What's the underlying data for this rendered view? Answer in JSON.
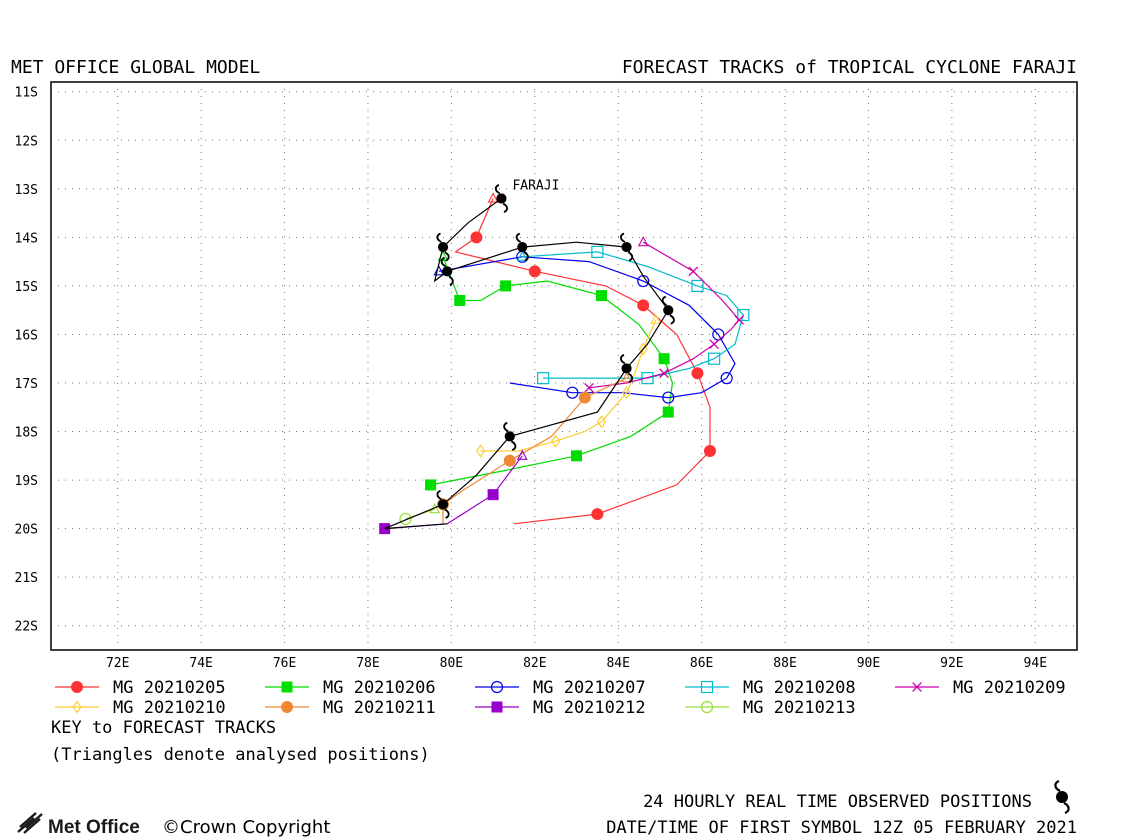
{
  "header": {
    "left_title": "MET OFFICE GLOBAL MODEL",
    "right_title": "FORECAST TRACKS of TROPICAL CYCLONE FARAJI"
  },
  "chart_data": {
    "type": "map-track",
    "lon_range": [
      70.4,
      95.0
    ],
    "lat_range": [
      -22.5,
      -10.8
    ],
    "x_ticks": [
      72,
      74,
      76,
      78,
      80,
      82,
      84,
      86,
      88,
      90,
      92,
      94
    ],
    "x_tick_labels": [
      "72E",
      "74E",
      "76E",
      "78E",
      "80E",
      "82E",
      "84E",
      "86E",
      "88E",
      "90E",
      "92E",
      "94E"
    ],
    "y_ticks": [
      -11,
      -12,
      -13,
      -14,
      -15,
      -16,
      -17,
      -18,
      -19,
      -20,
      -21,
      -22
    ],
    "y_tick_labels": [
      "11S",
      "12S",
      "13S",
      "14S",
      "15S",
      "16S",
      "17S",
      "18S",
      "19S",
      "20S",
      "21S",
      "22S"
    ],
    "grid": true,
    "storm_label": "FARAJI",
    "observed_positions": [
      [
        81.2,
        -13.2
      ],
      [
        79.8,
        -14.2
      ],
      [
        81.7,
        -14.2
      ],
      [
        84.2,
        -14.2
      ],
      [
        79.9,
        -14.7
      ],
      [
        85.2,
        -15.5
      ],
      [
        84.2,
        -16.7
      ],
      [
        81.4,
        -18.1
      ],
      [
        79.8,
        -19.5
      ]
    ],
    "observed_track": [
      [
        81.2,
        -13.2
      ],
      [
        80.4,
        -13.7
      ],
      [
        79.8,
        -14.2
      ],
      [
        79.6,
        -14.9
      ],
      [
        79.9,
        -14.7
      ],
      [
        81.7,
        -14.2
      ],
      [
        83.0,
        -14.1
      ],
      [
        84.2,
        -14.2
      ],
      [
        84.6,
        -14.8
      ],
      [
        85.2,
        -15.5
      ],
      [
        84.7,
        -16.2
      ],
      [
        84.2,
        -16.7
      ],
      [
        83.5,
        -17.6
      ],
      [
        81.4,
        -18.1
      ],
      [
        80.6,
        -18.9
      ],
      [
        79.8,
        -19.5
      ],
      [
        78.4,
        -20.0
      ],
      [
        79.9,
        -19.9
      ]
    ],
    "series": [
      {
        "name": "MG 20210205",
        "color": "#ff3333",
        "marker": "filled-circle",
        "points": [
          [
            81.0,
            -13.2
          ],
          [
            80.6,
            -14.0
          ],
          [
            80.1,
            -14.3
          ],
          [
            82.0,
            -14.7
          ],
          [
            83.7,
            -15.0
          ],
          [
            84.6,
            -15.4
          ],
          [
            85.4,
            -16.0
          ],
          [
            85.9,
            -16.8
          ],
          [
            86.2,
            -17.5
          ],
          [
            86.2,
            -18.4
          ],
          [
            85.4,
            -19.1
          ],
          [
            83.5,
            -19.7
          ],
          [
            81.5,
            -19.9
          ]
        ]
      },
      {
        "name": "MG 20210206",
        "color": "#00dd00",
        "marker": "filled-square",
        "points": [
          [
            79.8,
            -14.4
          ],
          [
            80.2,
            -15.3
          ],
          [
            80.7,
            -15.3
          ],
          [
            81.3,
            -15.0
          ],
          [
            82.3,
            -14.9
          ],
          [
            83.6,
            -15.2
          ],
          [
            84.5,
            -15.8
          ],
          [
            85.1,
            -16.5
          ],
          [
            85.3,
            -17.0
          ],
          [
            85.2,
            -17.6
          ],
          [
            84.3,
            -18.1
          ],
          [
            83.0,
            -18.5
          ],
          [
            81.3,
            -18.8
          ],
          [
            79.5,
            -19.1
          ]
        ]
      },
      {
        "name": "MG 20210207",
        "color": "#0000ee",
        "marker": "open-circle",
        "points": [
          [
            79.7,
            -14.7
          ],
          [
            81.7,
            -14.4
          ],
          [
            83.3,
            -14.5
          ],
          [
            84.6,
            -14.9
          ],
          [
            85.7,
            -15.4
          ],
          [
            86.4,
            -16.0
          ],
          [
            86.8,
            -16.6
          ],
          [
            86.6,
            -16.9
          ],
          [
            86.0,
            -17.2
          ],
          [
            85.2,
            -17.3
          ],
          [
            84.1,
            -17.2
          ],
          [
            82.9,
            -17.2
          ],
          [
            81.4,
            -17.0
          ]
        ]
      },
      {
        "name": "MG 20210208",
        "color": "#00bbcc",
        "marker": "open-square",
        "points": [
          [
            81.7,
            -14.4
          ],
          [
            83.5,
            -14.3
          ],
          [
            84.7,
            -14.6
          ],
          [
            85.9,
            -15.0
          ],
          [
            86.6,
            -15.2
          ],
          [
            87.0,
            -15.6
          ],
          [
            86.8,
            -16.2
          ],
          [
            86.3,
            -16.5
          ],
          [
            85.7,
            -16.7
          ],
          [
            84.7,
            -16.9
          ],
          [
            83.6,
            -16.9
          ],
          [
            82.2,
            -16.9
          ]
        ]
      },
      {
        "name": "MG 20210209",
        "color": "#cc00aa",
        "marker": "x",
        "points": [
          [
            84.6,
            -14.1
          ],
          [
            85.8,
            -14.7
          ],
          [
            86.5,
            -15.3
          ],
          [
            86.9,
            -15.7
          ],
          [
            86.7,
            -15.9
          ],
          [
            86.3,
            -16.2
          ],
          [
            85.8,
            -16.5
          ],
          [
            85.1,
            -16.8
          ],
          [
            84.2,
            -17.0
          ],
          [
            83.3,
            -17.1
          ]
        ]
      },
      {
        "name": "MG 20210210",
        "color": "#ffcc33",
        "marker": "open-diamond",
        "points": [
          [
            84.9,
            -15.7
          ],
          [
            84.6,
            -16.3
          ],
          [
            84.4,
            -16.8
          ],
          [
            84.2,
            -17.2
          ],
          [
            83.9,
            -17.5
          ],
          [
            83.6,
            -17.8
          ],
          [
            83.2,
            -18.0
          ],
          [
            82.5,
            -18.2
          ],
          [
            81.6,
            -18.4
          ],
          [
            80.7,
            -18.4
          ]
        ]
      },
      {
        "name": "MG 20210211",
        "color": "#ee8833",
        "marker": "filled-circle",
        "points": [
          [
            84.2,
            -16.9
          ],
          [
            83.2,
            -17.3
          ],
          [
            82.4,
            -18.1
          ],
          [
            81.4,
            -18.6
          ],
          [
            80.3,
            -19.2
          ],
          [
            79.8,
            -19.5
          ],
          [
            79.8,
            -19.9
          ]
        ]
      },
      {
        "name": "MG 20210212",
        "color": "#9900cc",
        "marker": "filled-square",
        "points": [
          [
            81.7,
            -18.5
          ],
          [
            81.0,
            -19.3
          ],
          [
            79.9,
            -19.9
          ],
          [
            78.4,
            -20.0
          ]
        ]
      },
      {
        "name": "MG 20210213",
        "color": "#99dd33",
        "marker": "open-circle",
        "points": [
          [
            79.6,
            -19.6
          ],
          [
            78.9,
            -19.8
          ]
        ]
      }
    ]
  },
  "legend": {
    "rows": [
      [
        "MG 20210205",
        "MG 20210206",
        "MG 20210207",
        "MG 20210208",
        "MG 20210209"
      ],
      [
        "MG 20210210",
        "MG 20210211",
        "MG 20210212",
        "MG 20210213"
      ]
    ]
  },
  "key_title": "KEY to FORECAST TRACKS",
  "key_note": "(Triangles denote analysed positions)",
  "footer": {
    "logo_text": "Met Office",
    "copyright": "©Crown Copyright",
    "observed_note": "24 HOURLY REAL TIME OBSERVED POSITIONS",
    "datetime_note": "DATE/TIME OF FIRST SYMBOL 12Z 05 FEBRUARY 2021"
  }
}
